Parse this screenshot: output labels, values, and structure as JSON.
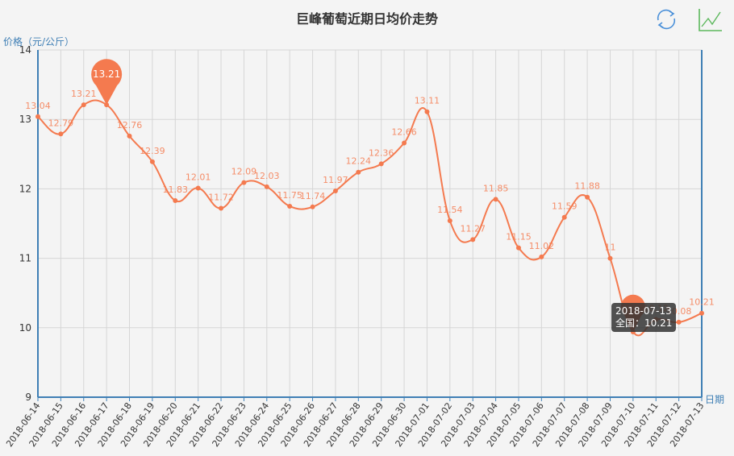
{
  "title": "巨峰葡萄近期日均价走势",
  "toolbox": {
    "items": [
      {
        "name": "restore",
        "icon": "refresh-icon",
        "color": "#4a90d9"
      },
      {
        "name": "line-chart",
        "icon": "line-chart-icon",
        "color": "#5cb85c"
      }
    ]
  },
  "tooltip": {
    "date": "2018-07-13",
    "text": "全国：10.21"
  },
  "colors": {
    "line": "#f47a4f",
    "axis": "#3f7fb5",
    "grid": "#d6d6d6",
    "background": "#f4f4f4"
  },
  "chart_data": {
    "type": "line",
    "title": "巨峰葡萄近期日均价走势",
    "xlabel": "日期",
    "ylabel": "价格（元/公斤）",
    "ylim": [
      9,
      14
    ],
    "yticks": [
      9,
      10,
      11,
      12,
      13,
      14
    ],
    "grid": true,
    "smooth": true,
    "categories": [
      "2018-06-14",
      "2018-06-15",
      "2018-06-16",
      "2018-06-17",
      "2018-06-18",
      "2018-06-19",
      "2018-06-20",
      "2018-06-21",
      "2018-06-22",
      "2018-06-23",
      "2018-06-24",
      "2018-06-25",
      "2018-06-26",
      "2018-06-27",
      "2018-06-28",
      "2018-06-29",
      "2018-06-30",
      "2018-07-01",
      "2018-07-02",
      "2018-07-03",
      "2018-07-04",
      "2018-07-05",
      "2018-07-06",
      "2018-07-07",
      "2018-07-08",
      "2018-07-09",
      "2018-07-10",
      "2018-07-11",
      "2018-07-12",
      "2018-07-13"
    ],
    "series": [
      {
        "name": "全国",
        "values": [
          13.04,
          12.79,
          13.21,
          13.21,
          12.76,
          12.39,
          11.83,
          12.01,
          11.72,
          12.09,
          12.03,
          11.75,
          11.74,
          11.97,
          12.24,
          12.36,
          12.66,
          13.11,
          11.54,
          11.27,
          11.85,
          11.15,
          11.02,
          11.59,
          11.88,
          11.0,
          9.94,
          10.12,
          10.08,
          10.21
        ]
      }
    ],
    "mark_point": {
      "type": "max",
      "value": 13.21,
      "index": 3
    },
    "mark_point_min": {
      "type": "min",
      "value": 9.94,
      "index": 26
    }
  }
}
